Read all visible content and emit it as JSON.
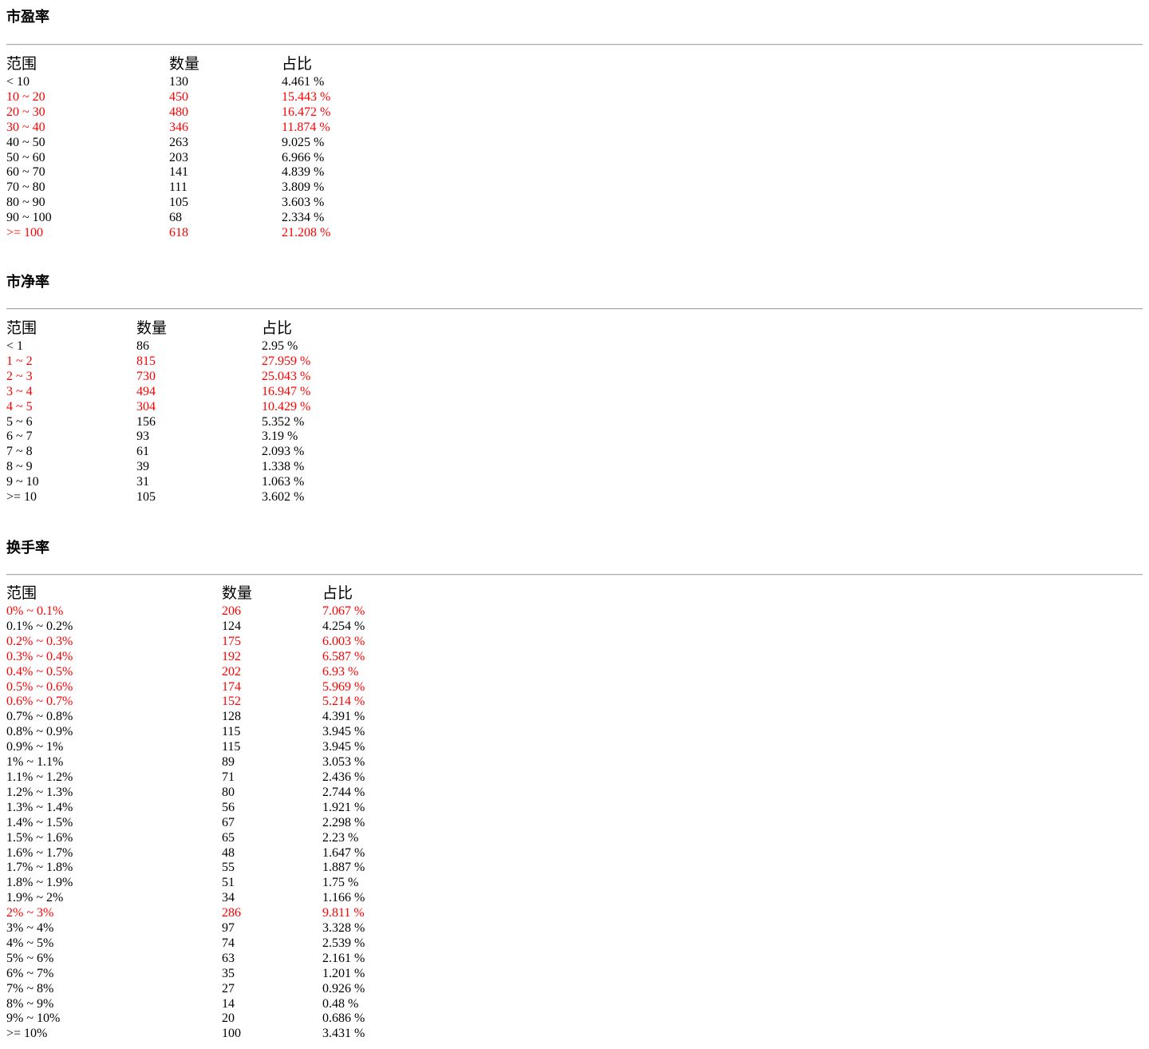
{
  "sections": [
    {
      "title": "市盈率",
      "headers": [
        "范围",
        "数量",
        "占比"
      ],
      "rows": [
        {
          "range": "< 10",
          "count": "130",
          "pct": "4.461 %",
          "hl": false
        },
        {
          "range": "10 ~ 20",
          "count": "450",
          "pct": "15.443 %",
          "hl": true
        },
        {
          "range": "20 ~ 30",
          "count": "480",
          "pct": "16.472 %",
          "hl": true
        },
        {
          "range": "30 ~ 40",
          "count": "346",
          "pct": "11.874 %",
          "hl": true
        },
        {
          "range": "40 ~ 50",
          "count": "263",
          "pct": "9.025 %",
          "hl": false
        },
        {
          "range": "50 ~ 60",
          "count": "203",
          "pct": "6.966 %",
          "hl": false
        },
        {
          "range": "60 ~ 70",
          "count": "141",
          "pct": "4.839 %",
          "hl": false
        },
        {
          "range": "70 ~ 80",
          "count": "111",
          "pct": "3.809 %",
          "hl": false
        },
        {
          "range": "80 ~ 90",
          "count": "105",
          "pct": "3.603 %",
          "hl": false
        },
        {
          "range": "90 ~ 100",
          "count": "68",
          "pct": "2.334 %",
          "hl": false
        },
        {
          "range": ">= 100",
          "count": "618",
          "pct": "21.208 %",
          "hl": true
        }
      ]
    },
    {
      "title": "市净率",
      "headers": [
        "范围",
        "数量",
        "占比"
      ],
      "rows": [
        {
          "range": "< 1",
          "count": "86",
          "pct": "2.95 %",
          "hl": false
        },
        {
          "range": "1 ~ 2",
          "count": "815",
          "pct": "27.959 %",
          "hl": true
        },
        {
          "range": "2 ~ 3",
          "count": "730",
          "pct": "25.043 %",
          "hl": true
        },
        {
          "range": "3 ~ 4",
          "count": "494",
          "pct": "16.947 %",
          "hl": true
        },
        {
          "range": "4 ~ 5",
          "count": "304",
          "pct": "10.429 %",
          "hl": true
        },
        {
          "range": "5 ~ 6",
          "count": "156",
          "pct": "5.352 %",
          "hl": false
        },
        {
          "range": "6 ~ 7",
          "count": "93",
          "pct": "3.19 %",
          "hl": false
        },
        {
          "range": "7 ~ 8",
          "count": "61",
          "pct": "2.093 %",
          "hl": false
        },
        {
          "range": "8 ~ 9",
          "count": "39",
          "pct": "1.338 %",
          "hl": false
        },
        {
          "range": "9 ~ 10",
          "count": "31",
          "pct": "1.063 %",
          "hl": false
        },
        {
          "range": ">= 10",
          "count": "105",
          "pct": "3.602 %",
          "hl": false
        }
      ]
    },
    {
      "title": "换手率",
      "headers": [
        "范围",
        "数量",
        "占比"
      ],
      "rows": [
        {
          "range": "0% ~ 0.1%",
          "count": "206",
          "pct": "7.067 %",
          "hl": true
        },
        {
          "range": "0.1% ~ 0.2%",
          "count": "124",
          "pct": "4.254 %",
          "hl": false
        },
        {
          "range": "0.2% ~ 0.3%",
          "count": "175",
          "pct": "6.003 %",
          "hl": true
        },
        {
          "range": "0.3% ~ 0.4%",
          "count": "192",
          "pct": "6.587 %",
          "hl": true
        },
        {
          "range": "0.4% ~ 0.5%",
          "count": "202",
          "pct": "6.93 %",
          "hl": true
        },
        {
          "range": "0.5% ~ 0.6%",
          "count": "174",
          "pct": "5.969 %",
          "hl": true
        },
        {
          "range": "0.6% ~ 0.7%",
          "count": "152",
          "pct": "5.214 %",
          "hl": true
        },
        {
          "range": "0.7% ~ 0.8%",
          "count": "128",
          "pct": "4.391 %",
          "hl": false
        },
        {
          "range": "0.8% ~ 0.9%",
          "count": "115",
          "pct": "3.945 %",
          "hl": false
        },
        {
          "range": "0.9% ~ 1%",
          "count": "115",
          "pct": "3.945 %",
          "hl": false
        },
        {
          "range": "1% ~ 1.1%",
          "count": "89",
          "pct": "3.053 %",
          "hl": false
        },
        {
          "range": "1.1% ~ 1.2%",
          "count": "71",
          "pct": "2.436 %",
          "hl": false
        },
        {
          "range": "1.2% ~ 1.3%",
          "count": "80",
          "pct": "2.744 %",
          "hl": false
        },
        {
          "range": "1.3% ~ 1.4%",
          "count": "56",
          "pct": "1.921 %",
          "hl": false
        },
        {
          "range": "1.4% ~ 1.5%",
          "count": "67",
          "pct": "2.298 %",
          "hl": false
        },
        {
          "range": "1.5% ~ 1.6%",
          "count": "65",
          "pct": "2.23 %",
          "hl": false
        },
        {
          "range": "1.6% ~ 1.7%",
          "count": "48",
          "pct": "1.647 %",
          "hl": false
        },
        {
          "range": "1.7% ~ 1.8%",
          "count": "55",
          "pct": "1.887 %",
          "hl": false
        },
        {
          "range": "1.8% ~ 1.9%",
          "count": "51",
          "pct": "1.75 %",
          "hl": false
        },
        {
          "range": "1.9% ~ 2%",
          "count": "34",
          "pct": "1.166 %",
          "hl": false
        },
        {
          "range": "2% ~ 3%",
          "count": "286",
          "pct": "9.811 %",
          "hl": true
        },
        {
          "range": "3% ~ 4%",
          "count": "97",
          "pct": "3.328 %",
          "hl": false
        },
        {
          "range": "4% ~ 5%",
          "count": "74",
          "pct": "2.539 %",
          "hl": false
        },
        {
          "range": "5% ~ 6%",
          "count": "63",
          "pct": "2.161 %",
          "hl": false
        },
        {
          "range": "6% ~ 7%",
          "count": "35",
          "pct": "1.201 %",
          "hl": false
        },
        {
          "range": "7% ~ 8%",
          "count": "27",
          "pct": "0.926 %",
          "hl": false
        },
        {
          "range": "8% ~ 9%",
          "count": "14",
          "pct": "0.48 %",
          "hl": false
        },
        {
          "range": "9% ~ 10%",
          "count": "20",
          "pct": "0.686 %",
          "hl": false
        },
        {
          "range": ">= 10%",
          "count": "100",
          "pct": "3.431 %",
          "hl": false
        }
      ]
    }
  ],
  "colors": {
    "highlight": "#ff0000",
    "text": "#000000",
    "divider": "#a8a8a8"
  }
}
